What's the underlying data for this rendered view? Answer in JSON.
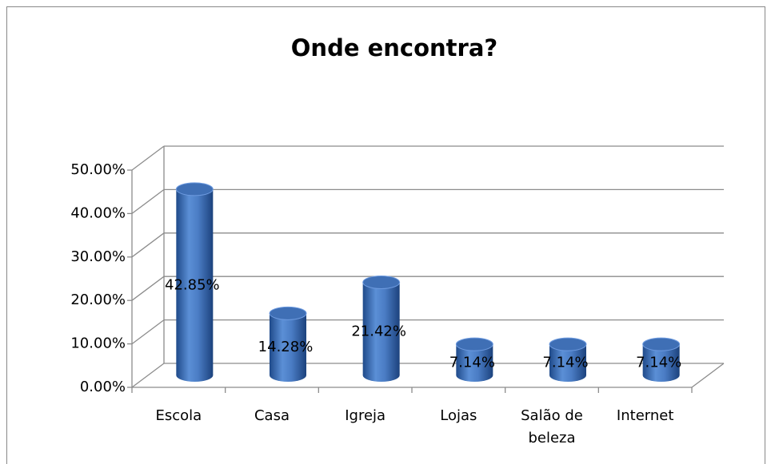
{
  "chart_data": {
    "type": "bar",
    "title": "Onde encontra?",
    "categories": [
      "Escola",
      "Casa",
      "Igreja",
      "Lojas",
      "Salão de beleza",
      "Internet"
    ],
    "values": [
      42.85,
      14.28,
      21.42,
      7.14,
      7.14,
      7.14
    ],
    "value_labels": [
      "42.85%",
      "14.28%",
      "21.42%",
      "7.14%",
      "7.14%",
      "7.14%"
    ],
    "color": "#3f6fb5",
    "ylim": [
      0,
      50
    ],
    "yticks": [
      {
        "value": 0,
        "label": "0.00%"
      },
      {
        "value": 10,
        "label": "10.00%"
      },
      {
        "value": 20,
        "label": "20.00%"
      },
      {
        "value": 30,
        "label": "30.00%"
      },
      {
        "value": 40,
        "label": "40.00%"
      },
      {
        "value": 50,
        "label": "50.00%"
      }
    ],
    "grid": true
  }
}
